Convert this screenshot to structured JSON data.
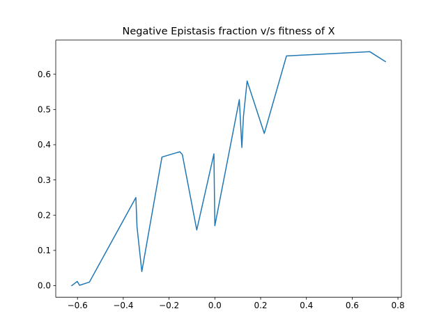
{
  "chart_data": {
    "type": "line",
    "title": "Negative Epistasis fraction v/s fitness of X",
    "xlabel": "",
    "ylabel": "",
    "xlim": [
      -0.695,
      0.815
    ],
    "ylim": [
      -0.033,
      0.697
    ],
    "x_ticks": [
      -0.6,
      -0.4,
      -0.2,
      0.0,
      0.2,
      0.4,
      0.6,
      0.8
    ],
    "x_tick_labels": [
      "−0.6",
      "−0.4",
      "−0.2",
      "0.0",
      "0.2",
      "0.4",
      "0.6",
      "0.8"
    ],
    "y_ticks": [
      0.0,
      0.1,
      0.2,
      0.3,
      0.4,
      0.5,
      0.6
    ],
    "y_tick_labels": [
      "0.0",
      "0.1",
      "0.2",
      "0.3",
      "0.4",
      "0.5",
      "0.6"
    ],
    "grid": false,
    "legend": "none",
    "series": [
      {
        "color": "#1f77b4",
        "x": [
          -0.625,
          -0.601,
          -0.591,
          -0.548,
          -0.345,
          -0.34,
          -0.319,
          -0.231,
          -0.153,
          -0.142,
          -0.079,
          -0.004,
          0.0,
          0.107,
          0.118,
          0.125,
          0.141,
          0.216,
          0.313,
          0.677,
          0.745
        ],
        "y": [
          0.0,
          0.012,
          0.001,
          0.01,
          0.25,
          0.167,
          0.04,
          0.365,
          0.38,
          0.372,
          0.158,
          0.374,
          0.17,
          0.528,
          0.392,
          0.48,
          0.581,
          0.432,
          0.652,
          0.664,
          0.636
        ]
      }
    ]
  }
}
